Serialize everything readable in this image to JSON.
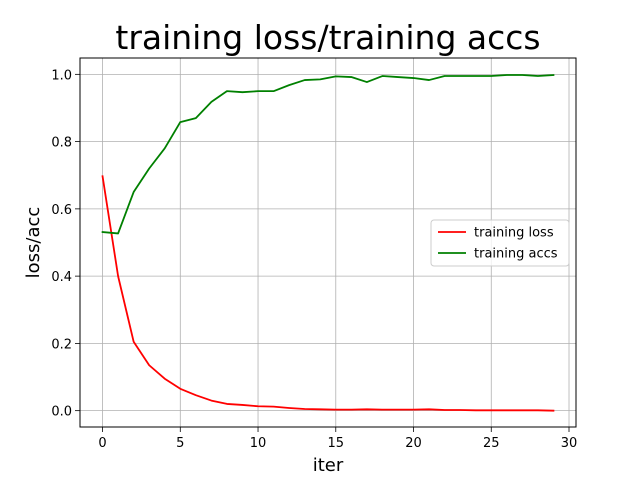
{
  "chart_data": {
    "type": "line",
    "title": "training loss/training accs",
    "xlabel": "iter",
    "ylabel": "loss/acc",
    "xlim": [
      -1.45,
      30.45
    ],
    "ylim": [
      -0.0486,
      1.0486
    ],
    "xticks": [
      0,
      5,
      10,
      15,
      20,
      25,
      30
    ],
    "xtick_labels": [
      "0",
      "5",
      "10",
      "15",
      "20",
      "25",
      "30"
    ],
    "yticks": [
      0.0,
      0.2,
      0.4,
      0.6,
      0.8,
      1.0
    ],
    "ytick_labels": [
      "0.0",
      "0.2",
      "0.4",
      "0.6",
      "0.8",
      "1.0"
    ],
    "grid": true,
    "legend_position": "center-right",
    "x": [
      0,
      1,
      2,
      3,
      4,
      5,
      6,
      7,
      8,
      9,
      10,
      11,
      12,
      13,
      14,
      15,
      16,
      17,
      18,
      19,
      20,
      21,
      22,
      23,
      24,
      25,
      26,
      27,
      28,
      29
    ],
    "series": [
      {
        "name": "training loss",
        "color": "#ff0000",
        "values": [
          0.697,
          0.4,
          0.205,
          0.135,
          0.095,
          0.065,
          0.046,
          0.03,
          0.02,
          0.017,
          0.013,
          0.012,
          0.008,
          0.005,
          0.004,
          0.003,
          0.003,
          0.004,
          0.003,
          0.003,
          0.003,
          0.004,
          0.002,
          0.002,
          0.001,
          0.001,
          0.001,
          0.001,
          0.001,
          0.0
        ]
      },
      {
        "name": "training accs",
        "color": "#008000",
        "values": [
          0.531,
          0.527,
          0.65,
          0.72,
          0.78,
          0.858,
          0.87,
          0.918,
          0.95,
          0.947,
          0.95,
          0.95,
          0.968,
          0.983,
          0.985,
          0.994,
          0.992,
          0.977,
          0.995,
          0.992,
          0.989,
          0.983,
          0.995,
          0.995,
          0.995,
          0.995,
          0.998,
          0.998,
          0.995,
          0.998
        ]
      }
    ]
  }
}
